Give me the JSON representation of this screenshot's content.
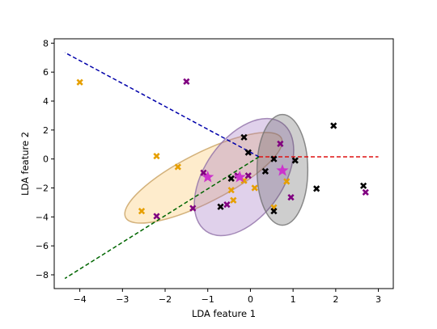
{
  "chart_data": {
    "type": "scatter",
    "title": "",
    "xlabel": "LDA feature 1",
    "ylabel": "LDA feature 2",
    "xlim": [
      -4.6,
      3.35
    ],
    "ylim": [
      -8.95,
      8.3
    ],
    "xticks": [
      -4,
      -3,
      -2,
      -1,
      0,
      1,
      2,
      3
    ],
    "yticks": [
      -8,
      -6,
      -4,
      -2,
      0,
      2,
      4,
      6,
      8
    ],
    "xtick_labels": [
      "−4",
      "−3",
      "−2",
      "−1",
      "0",
      "1",
      "2",
      "3"
    ],
    "ytick_labels": [
      "−8",
      "−6",
      "−4",
      "−2",
      "0",
      "2",
      "4",
      "6",
      "8"
    ],
    "grid": false,
    "legend": "none",
    "colors": {
      "orange": "#e69f00",
      "purple": "#800080",
      "black": "#000000",
      "center_star": "#cc33cc",
      "blue_line": "#0000aa",
      "red_line": "#dd1111",
      "green_line": "#006600"
    },
    "series": [
      {
        "color": "#e69f00",
        "marker": "X",
        "points": [
          [
            -4.0,
            5.3
          ],
          [
            -2.2,
            0.2
          ],
          [
            -2.55,
            -3.6
          ],
          [
            -1.7,
            -0.55
          ],
          [
            -1.0,
            -1.3
          ],
          [
            -0.45,
            -2.15
          ],
          [
            -0.4,
            -2.85
          ],
          [
            -0.15,
            -1.5
          ],
          [
            0.1,
            -2.0
          ],
          [
            0.55,
            -3.35
          ],
          [
            0.85,
            -1.55
          ]
        ]
      },
      {
        "color": "#800080",
        "marker": "X",
        "points": [
          [
            -1.5,
            5.35
          ],
          [
            -2.2,
            -3.95
          ],
          [
            -1.35,
            -3.4
          ],
          [
            -1.1,
            -0.95
          ],
          [
            -0.55,
            -3.15
          ],
          [
            -0.3,
            -1.15
          ],
          [
            -0.05,
            -1.15
          ],
          [
            0.7,
            1.05
          ],
          [
            0.95,
            -2.65
          ],
          [
            2.7,
            -2.3
          ]
        ]
      },
      {
        "color": "#000000",
        "marker": "X",
        "points": [
          [
            -0.7,
            -3.3
          ],
          [
            -0.45,
            -1.35
          ],
          [
            -0.15,
            1.5
          ],
          [
            -0.05,
            0.45
          ],
          [
            0.35,
            -0.85
          ],
          [
            0.55,
            0.0
          ],
          [
            0.55,
            -3.6
          ],
          [
            1.05,
            -0.1
          ],
          [
            1.55,
            -2.05
          ],
          [
            1.95,
            2.3
          ],
          [
            2.65,
            -1.85
          ]
        ]
      }
    ],
    "ellipses": [
      {
        "cx": -1.1,
        "cy": -1.3,
        "rx": 2.05,
        "ry": 1.7,
        "angle": -27,
        "fill": "#fbc460",
        "stroke": "#c8a060",
        "opacity": 0.32
      },
      {
        "cx": -0.15,
        "cy": -1.25,
        "rx": 1.55,
        "ry": 2.7,
        "angle": -55,
        "fill": "#a070c0",
        "stroke": "#9070a8",
        "opacity": 0.32
      },
      {
        "cx": 0.75,
        "cy": -0.75,
        "rx": 1.3,
        "ry": 1.75,
        "angle": 90,
        "fill": "#505050",
        "stroke": "#707070",
        "opacity": 0.28
      }
    ],
    "centers": [
      [
        -1.0,
        -1.25
      ],
      [
        -0.25,
        -1.25
      ],
      [
        0.75,
        -0.8
      ]
    ],
    "lines": [
      {
        "color": "#0000aa",
        "style": "dashed",
        "points": [
          [
            0.2,
            0.15
          ],
          [
            -4.35,
            7.35
          ]
        ]
      },
      {
        "color": "#dd1111",
        "style": "dashed",
        "points": [
          [
            0.2,
            0.15
          ],
          [
            3.0,
            0.15
          ]
        ]
      },
      {
        "color": "#006600",
        "style": "dashed",
        "points": [
          [
            0.2,
            0.15
          ],
          [
            -4.35,
            -8.25
          ]
        ]
      }
    ]
  }
}
